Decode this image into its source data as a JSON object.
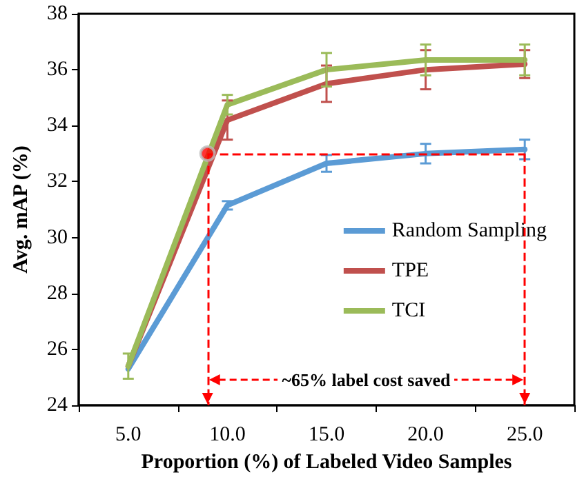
{
  "chart_data": {
    "type": "line",
    "xlabel": "Proportion (%) of Labeled Video Samples",
    "ylabel": "Avg. mAP (%)",
    "x": [
      5,
      10,
      15,
      20,
      25
    ],
    "xlim": [
      2.5,
      27.5
    ],
    "xticks": [
      {
        "value": 2.5,
        "label": null
      },
      {
        "value": 5,
        "label": "5.0"
      },
      {
        "value": 7.5,
        "label": null
      },
      {
        "value": 10,
        "label": "10.0"
      },
      {
        "value": 12.5,
        "label": null
      },
      {
        "value": 15,
        "label": "15.0"
      },
      {
        "value": 17.5,
        "label": null
      },
      {
        "value": 20,
        "label": "20.0"
      },
      {
        "value": 22.5,
        "label": null
      },
      {
        "value": 25,
        "label": "25.0"
      },
      {
        "value": 27.5,
        "label": null
      }
    ],
    "ylim": [
      24,
      38
    ],
    "yticks": [
      24,
      26,
      28,
      30,
      32,
      34,
      36,
      38
    ],
    "series": [
      {
        "name": "Random Sampling",
        "color": "#5b9bd5",
        "values": [
          25.3,
          31.15,
          32.65,
          33.0,
          33.15
        ],
        "errors": [
          null,
          0.15,
          0.3,
          0.35,
          0.35
        ]
      },
      {
        "name": "TPE",
        "color": "#c0504d",
        "values": [
          25.4,
          34.2,
          35.5,
          36.0,
          36.2
        ],
        "errors": [
          null,
          0.7,
          0.65,
          0.7,
          0.5
        ]
      },
      {
        "name": "TCI",
        "color": "#9bbb59",
        "values": [
          25.4,
          34.75,
          36.0,
          36.35,
          36.35
        ],
        "errors": [
          0.45,
          0.35,
          0.6,
          0.55,
          0.55
        ]
      },
      {
        "type": "scatter",
        "color": "#ff0000",
        "x": [
          9
        ],
        "values": [
          33
        ],
        "marker": "circle"
      }
    ],
    "ref_lines": [
      {
        "axis": "x",
        "value": 9,
        "color": "#ff0000",
        "line_style": "dashed"
      },
      {
        "axis": "x",
        "value": 25,
        "color": "#ff0000",
        "line_style": "dashed"
      },
      {
        "axis": "y",
        "value": 33,
        "color": "#ff0000",
        "line_style": "dashed"
      }
    ],
    "annotations": [
      "~65% label cost saved"
    ],
    "legend": "right",
    "grid": false,
    "marker": "none"
  }
}
